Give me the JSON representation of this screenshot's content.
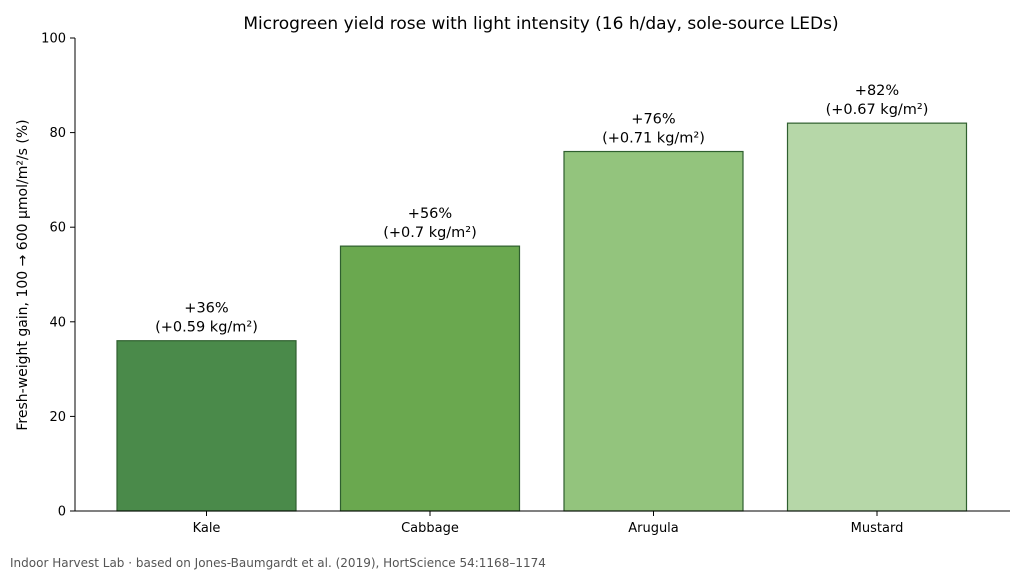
{
  "chart_data": {
    "type": "bar",
    "title": "Microgreen yield rose with light intensity (16 h/day, sole-source LEDs)",
    "xlabel": "",
    "ylabel": "Fresh-weight gain, 100 → 600 µmol/m²/s (%)",
    "ylim": [
      0,
      100
    ],
    "yticks": [
      0,
      20,
      40,
      60,
      80,
      100
    ],
    "categories": [
      "Kale",
      "Cabbage",
      "Arugula",
      "Mustard"
    ],
    "values": [
      36,
      56,
      76,
      82
    ],
    "data_labels": [
      [
        "+36%",
        "(+0.59 kg/m²)"
      ],
      [
        "+56%",
        "(+0.7 kg/m²)"
      ],
      [
        "+76%",
        "(+0.71 kg/m²)"
      ],
      [
        "+82%",
        "(+0.67 kg/m²)"
      ]
    ],
    "colors": [
      "#4a8a4a",
      "#6aa84f",
      "#93c47d",
      "#b6d7a8"
    ],
    "edge_color": "#2f5f2f",
    "grid": false,
    "legend": "none"
  },
  "source_note": "Indoor Harvest Lab · based on Jones-Baumgardt et al. (2019), HortScience 54:1168–1174"
}
